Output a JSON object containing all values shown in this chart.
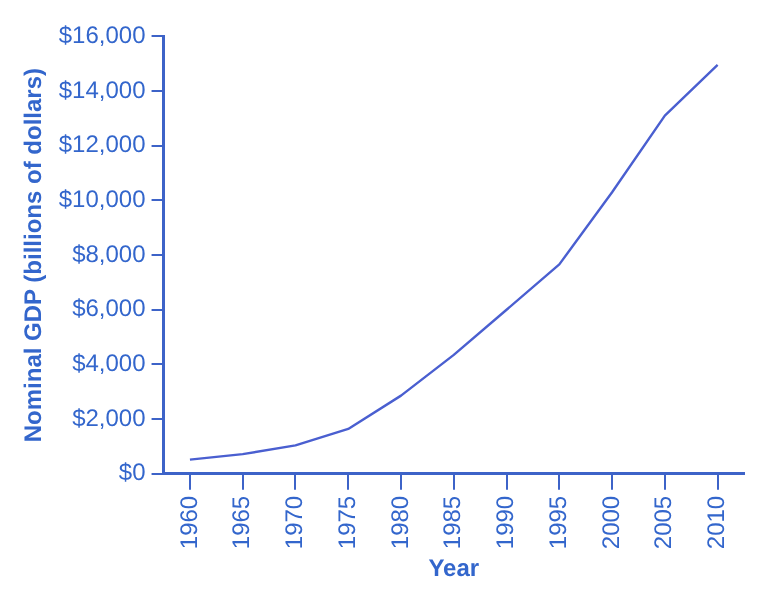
{
  "chart_data": {
    "type": "line",
    "xlabel": "Year",
    "ylabel": "Nominal GDP (billions of dollars)",
    "categories": [
      "1960",
      "1965",
      "1970",
      "1975",
      "1980",
      "1985",
      "1990",
      "1995",
      "2000",
      "2005",
      "2010"
    ],
    "series": [
      {
        "color": "#4a5fd0",
        "values": [
          520,
          720,
          1040,
          1640,
          2860,
          4350,
          6000,
          7660,
          10300,
          13100,
          14960
        ]
      }
    ],
    "ylim": [
      0,
      16000
    ],
    "yticks": [
      {
        "value": 0,
        "label": "$0"
      },
      {
        "value": 2000,
        "label": "$2,000"
      },
      {
        "value": 4000,
        "label": "$4,000"
      },
      {
        "value": 6000,
        "label": "$6,000"
      },
      {
        "value": 8000,
        "label": "$8,000"
      },
      {
        "value": 10000,
        "label": "$10,000"
      },
      {
        "value": 12000,
        "label": "$12,000"
      },
      {
        "value": 14000,
        "label": "$14,000"
      },
      {
        "value": 16000,
        "label": "$16,000"
      }
    ],
    "grid": false,
    "legend": false,
    "marker": "none",
    "line_style": "solid"
  }
}
